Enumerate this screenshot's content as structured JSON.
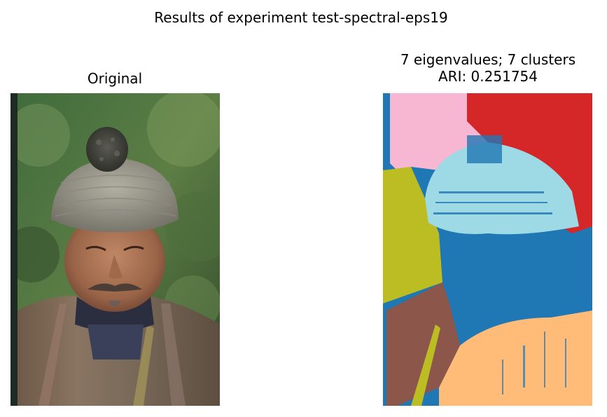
{
  "figure": {
    "suptitle": "Results of experiment test-spectral-eps19"
  },
  "left_panel": {
    "title": "Original",
    "image_subject": "photo-of-elderly-man-in-knitted-wool-cap"
  },
  "right_panel": {
    "title_line1": "7 eigenvalues; 7 clusters",
    "title_line2": "ARI: 0.251754",
    "image_subject": "segmentation-map"
  },
  "colors": {
    "cluster_blue": "#1f77b4",
    "cluster_red": "#d62728",
    "cluster_pink": "#f7b6d2",
    "cluster_cyan": "#9edae5",
    "cluster_olive": "#bcbd22",
    "cluster_brown": "#8c564b",
    "cluster_orange": "#ffbb78"
  }
}
